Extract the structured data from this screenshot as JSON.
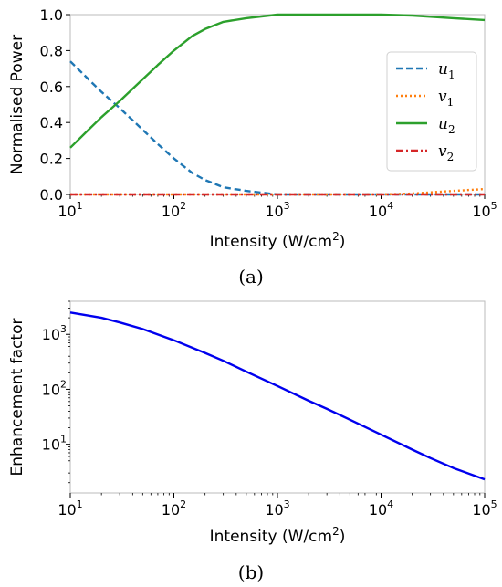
{
  "chart_data": [
    {
      "type": "line",
      "caption": "(a)",
      "xlabel": "Intensity (W/cm",
      "xlabel_sup": "2",
      "xlabel_end": ")",
      "ylabel": "Normalised Power",
      "xscale": "log",
      "xlim": [
        10,
        100000
      ],
      "ylim": [
        0,
        1.0
      ],
      "xticks": [
        {
          "base": "10",
          "exp": "1"
        },
        {
          "base": "10",
          "exp": "2"
        },
        {
          "base": "10",
          "exp": "3"
        },
        {
          "base": "10",
          "exp": "4"
        },
        {
          "base": "10",
          "exp": "5"
        }
      ],
      "yticks": [
        "0.0",
        "0.2",
        "0.4",
        "0.6",
        "0.8",
        "1.0"
      ],
      "legend_position": "center-right",
      "x": [
        10,
        15,
        20,
        30,
        50,
        70,
        100,
        150,
        200,
        300,
        500,
        700,
        1000,
        2000,
        5000,
        10000,
        20000,
        50000,
        100000
      ],
      "series": [
        {
          "name": "u",
          "sub": "1",
          "color": "#1f77b4",
          "dash": "dashed",
          "values": [
            0.74,
            0.64,
            0.57,
            0.48,
            0.36,
            0.28,
            0.2,
            0.12,
            0.08,
            0.04,
            0.02,
            0.01,
            0.0,
            0.0,
            0.0,
            0.0,
            0.0,
            0.0,
            0.0
          ]
        },
        {
          "name": "v",
          "sub": "1",
          "color": "#ff7f0e",
          "dash": "dotted",
          "values": [
            0.0,
            0.0,
            0.0,
            0.0,
            0.0,
            0.0,
            0.0,
            0.0,
            0.0,
            0.0,
            0.0,
            0.0,
            0.0,
            0.0,
            0.0,
            0.0,
            0.005,
            0.02,
            0.03
          ]
        },
        {
          "name": "u",
          "sub": "2",
          "color": "#2ca02c",
          "dash": "solid",
          "values": [
            0.26,
            0.36,
            0.43,
            0.52,
            0.64,
            0.72,
            0.8,
            0.88,
            0.92,
            0.96,
            0.98,
            0.99,
            1.0,
            1.0,
            1.0,
            1.0,
            0.995,
            0.98,
            0.97
          ]
        },
        {
          "name": "v",
          "sub": "2",
          "color": "#d62728",
          "dash": "dashdot",
          "values": [
            0.0,
            0.0,
            0.0,
            0.0,
            0.0,
            0.0,
            0.0,
            0.0,
            0.0,
            0.0,
            0.0,
            0.0,
            0.0,
            0.0,
            0.0,
            0.0,
            0.0,
            0.0,
            0.0
          ]
        }
      ]
    },
    {
      "type": "line",
      "caption": "(b)",
      "xlabel": "Intensity (W/cm",
      "xlabel_sup": "2",
      "xlabel_end": ")",
      "ylabel": "Enhancement factor",
      "xscale": "log",
      "yscale": "log",
      "xlim": [
        10,
        100000
      ],
      "ylim": [
        1.3,
        4000
      ],
      "xticks": [
        {
          "base": "10",
          "exp": "1"
        },
        {
          "base": "10",
          "exp": "2"
        },
        {
          "base": "10",
          "exp": "3"
        },
        {
          "base": "10",
          "exp": "4"
        },
        {
          "base": "10",
          "exp": "5"
        }
      ],
      "yticks": [
        {
          "value": 10,
          "base": "10",
          "exp": "1"
        },
        {
          "value": 100,
          "base": "10",
          "exp": "2"
        },
        {
          "value": 1000,
          "base": "10",
          "exp": "3"
        }
      ],
      "x": [
        10,
        20,
        30,
        50,
        100,
        200,
        300,
        500,
        1000,
        2000,
        3000,
        5000,
        10000,
        20000,
        30000,
        50000,
        100000
      ],
      "series": [
        {
          "color": "#0000ee",
          "values": [
            2500,
            2000,
            1650,
            1250,
            780,
            460,
            330,
            210,
            115,
            62,
            44,
            28,
            15,
            8,
            5.6,
            3.7,
            2.3
          ]
        }
      ]
    }
  ]
}
